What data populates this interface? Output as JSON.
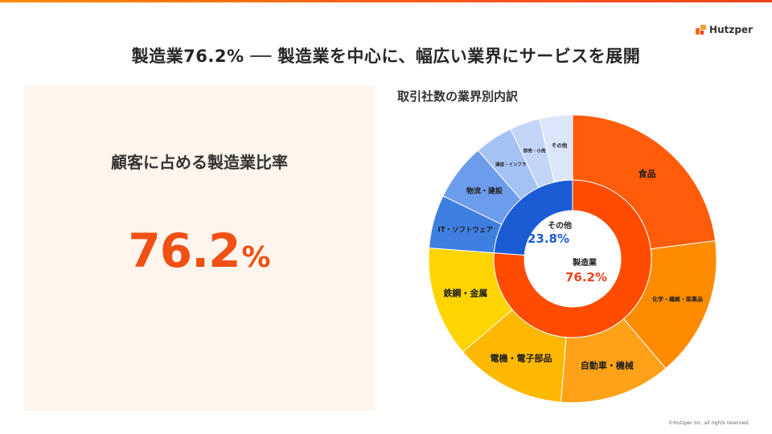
{
  "brand": {
    "name": "Hutzper"
  },
  "title": "製造業76.2% ── 製造業を中心に、幅広い業界にサービスを展開",
  "left_panel": {
    "label": "顧客に占める製造業比率",
    "value": "76.2",
    "unit": "%"
  },
  "copyright": "©Hutzper Inc. all rights reserved.",
  "chart_data": {
    "type": "pie",
    "title": "取引社数の業界別内訳",
    "inner_ring": [
      {
        "label": "製造業",
        "value": 76.2,
        "display": "76.2%",
        "color": "#ff4c00",
        "label_color": "#e8431a"
      },
      {
        "label": "その他",
        "value": 23.8,
        "display": "23.8%",
        "color": "#1b5bd4",
        "label_color": "#1b5bd4"
      }
    ],
    "outer_ring": [
      {
        "label": "食品",
        "value": 23.0,
        "color": "#ff5c0a"
      },
      {
        "label": "化学・繊維・医薬品",
        "value": 15.8,
        "color": "#ff8c00"
      },
      {
        "label": "自動車・機械",
        "value": 12.5,
        "color": "#ffa21a"
      },
      {
        "label": "電機・電子部品",
        "value": 12.5,
        "color": "#ffb800"
      },
      {
        "label": "鉄鋼・金属",
        "value": 12.4,
        "color": "#ffd400"
      },
      {
        "label": "IT・ソフトウェア",
        "value": 6.0,
        "color": "#3f7fe0"
      },
      {
        "label": "物流・建設",
        "value": 6.4,
        "color": "#6d9cec"
      },
      {
        "label": "通信・インフラ",
        "value": 4.3,
        "color": "#a4c2f4"
      },
      {
        "label": "卸売・小売",
        "value": 3.4,
        "color": "#c3d6f7"
      },
      {
        "label": "その他",
        "value": 3.7,
        "color": "#dbe6fb"
      }
    ]
  }
}
